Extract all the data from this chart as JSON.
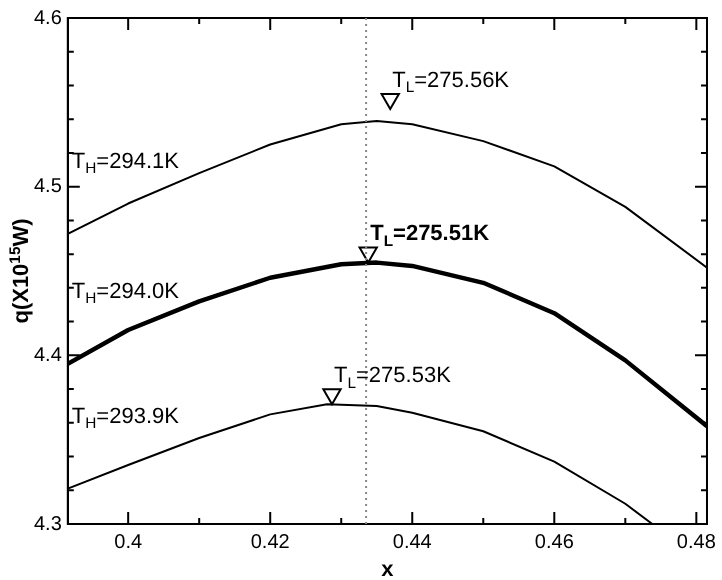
{
  "chart_data": {
    "type": "line",
    "xlabel": "x",
    "ylabel": "q(X10$^{15}$W)",
    "xlim": [
      0.3915,
      0.4815
    ],
    "ylim": [
      4.3,
      4.6
    ],
    "xticks": [
      0.4,
      {
        "value": 0.41,
        "label": null
      },
      0.42,
      {
        "value": 0.43,
        "label": null
      },
      0.44,
      {
        "value": 0.45,
        "label": null
      },
      0.46,
      {
        "value": 0.47,
        "label": null
      },
      0.48
    ],
    "yticks": [
      4.3,
      {
        "value": 4.32,
        "label": null
      },
      {
        "value": 4.34,
        "label": null
      },
      {
        "value": 4.36,
        "label": null
      },
      {
        "value": 4.38,
        "label": null
      },
      4.4,
      {
        "value": 4.42,
        "label": null
      },
      {
        "value": 4.44,
        "label": null
      },
      {
        "value": 4.46,
        "label": null
      },
      {
        "value": 4.48,
        "label": null
      },
      4.5,
      {
        "value": 4.52,
        "label": null
      },
      {
        "value": 4.54,
        "label": null
      },
      {
        "value": 4.56,
        "label": null
      },
      {
        "value": 4.58,
        "label": null
      },
      4.6
    ],
    "grid": false,
    "legend": false,
    "line_style": "solid",
    "series": [
      {
        "color": "#000000",
        "x": [
          0.3915,
          0.4,
          0.41,
          0.42,
          0.43,
          0.435,
          0.44,
          0.45,
          0.46,
          0.47,
          0.4815
        ],
        "values": [
          4.472,
          4.49,
          4.508,
          4.525,
          4.537,
          4.539,
          4.537,
          4.527,
          4.512,
          4.488,
          4.452
        ]
      },
      {
        "color": "#000000",
        "x": [
          0.3915,
          0.4,
          0.41,
          0.42,
          0.43,
          0.435,
          0.44,
          0.45,
          0.46,
          0.47,
          0.4815
        ],
        "values": [
          4.395,
          4.415,
          4.432,
          4.446,
          4.454,
          4.455,
          4.453,
          4.443,
          4.425,
          4.397,
          4.358
        ]
      },
      {
        "color": "#000000",
        "x": [
          0.3915,
          0.4,
          0.41,
          0.42,
          0.428,
          0.435,
          0.44,
          0.45,
          0.46,
          0.47,
          0.4738
        ],
        "values": [
          4.321,
          4.335,
          4.351,
          4.365,
          4.371,
          4.37,
          4.366,
          4.355,
          4.337,
          4.312,
          4.3
        ]
      },
      {
        "type": "scatter",
        "marker": "triangle",
        "color": "#000000",
        "x": [
          0.4369,
          0.4338,
          0.4287
        ],
        "values": [
          4.552,
          4.461,
          4.377
        ]
      }
    ],
    "ref_lines": [
      {
        "axis": "x",
        "value": 0.4335,
        "color": "#888888",
        "line_style": "dotted"
      }
    ],
    "annotations": [
      "T$_{H}$=294.1K",
      "T$_{L}$=275.56K",
      "T$_{H}$=294.0K",
      "T$_{L}$=275.51K",
      "T$_{H}$=293.9K",
      "T$_{L}$=275.53K"
    ]
  }
}
